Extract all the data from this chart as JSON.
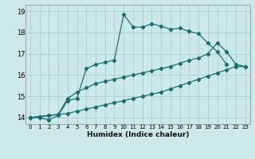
{
  "xlabel": "Humidex (Indice chaleur)",
  "bg_color": "#cce8e8",
  "grid_color": "#aad4d4",
  "line_color": "#1a7070",
  "line1_x": [
    0,
    1,
    2,
    3,
    4,
    5,
    6,
    7,
    8,
    9,
    10,
    11,
    12,
    13,
    14,
    15,
    16,
    17,
    18,
    19,
    20,
    21
  ],
  "line1_y": [
    14.0,
    14.0,
    13.9,
    14.1,
    14.8,
    14.9,
    16.3,
    16.5,
    16.6,
    16.7,
    18.85,
    18.25,
    18.25,
    18.4,
    18.3,
    18.15,
    18.2,
    18.05,
    17.95,
    17.5,
    17.1,
    16.5
  ],
  "line2_x": [
    0,
    1,
    2,
    3,
    4,
    5,
    6,
    7,
    8,
    9,
    10,
    11,
    12,
    13,
    14,
    15,
    16,
    17,
    18,
    19,
    20,
    21,
    22,
    23
  ],
  "line2_y": [
    14.0,
    14.05,
    14.1,
    14.15,
    14.9,
    15.2,
    15.4,
    15.6,
    15.7,
    15.8,
    15.9,
    16.0,
    16.1,
    16.2,
    16.3,
    16.4,
    16.55,
    16.7,
    16.8,
    17.0,
    17.5,
    17.1,
    16.5,
    16.4
  ],
  "line3_x": [
    0,
    1,
    2,
    3,
    4,
    5,
    6,
    7,
    8,
    9,
    10,
    11,
    12,
    13,
    14,
    15,
    16,
    17,
    18,
    19,
    20,
    21,
    22,
    23
  ],
  "line3_y": [
    14.0,
    14.05,
    14.1,
    14.15,
    14.2,
    14.3,
    14.4,
    14.5,
    14.6,
    14.7,
    14.8,
    14.9,
    15.0,
    15.1,
    15.2,
    15.35,
    15.5,
    15.65,
    15.8,
    15.95,
    16.1,
    16.25,
    16.4,
    16.4
  ],
  "xlim": [
    -0.5,
    23.5
  ],
  "ylim": [
    13.7,
    19.3
  ],
  "yticks": [
    14,
    15,
    16,
    17,
    18,
    19
  ],
  "xticks": [
    0,
    1,
    2,
    3,
    4,
    5,
    6,
    7,
    8,
    9,
    10,
    11,
    12,
    13,
    14,
    15,
    16,
    17,
    18,
    19,
    20,
    21,
    22,
    23
  ]
}
